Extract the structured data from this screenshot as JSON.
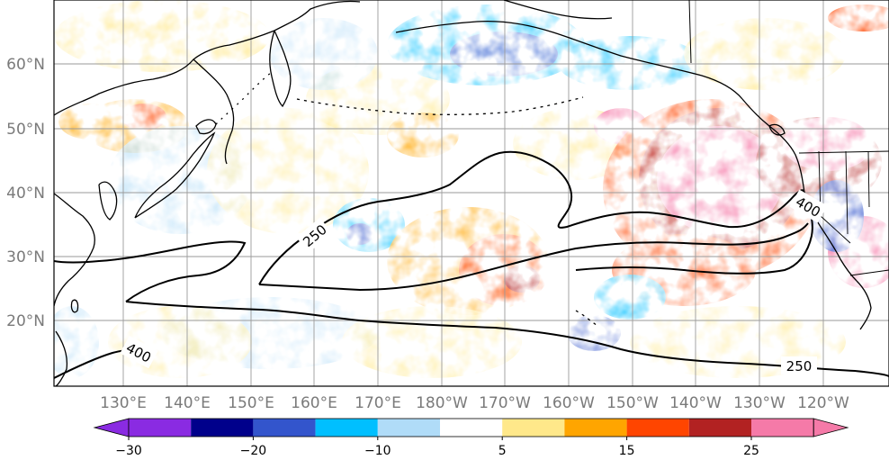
{
  "map": {
    "lon_labels": [
      "130°E",
      "140°E",
      "150°E",
      "160°E",
      "170°E",
      "180°W",
      "170°W",
      "160°W",
      "150°W",
      "140°W",
      "130°W",
      "120°W"
    ],
    "lat_labels": [
      "60°N",
      "50°N",
      "40°N",
      "30°N",
      "20°N"
    ],
    "contour_labels": [
      "250",
      "400",
      "400",
      "250"
    ]
  },
  "colorbar": {
    "colors": [
      "#8a2be2",
      "#00008b",
      "#3355cc",
      "#00bfff",
      "#b0dcf8",
      "#ffffff",
      "#ffe88a",
      "#ffa500",
      "#ff4500",
      "#b22222",
      "#f57aa8"
    ],
    "tick_labels": [
      "−30",
      "−20",
      "−10",
      "5",
      "15",
      "25"
    ]
  },
  "colors": {
    "coast": "#000000",
    "grid": "#9a9a9a"
  }
}
